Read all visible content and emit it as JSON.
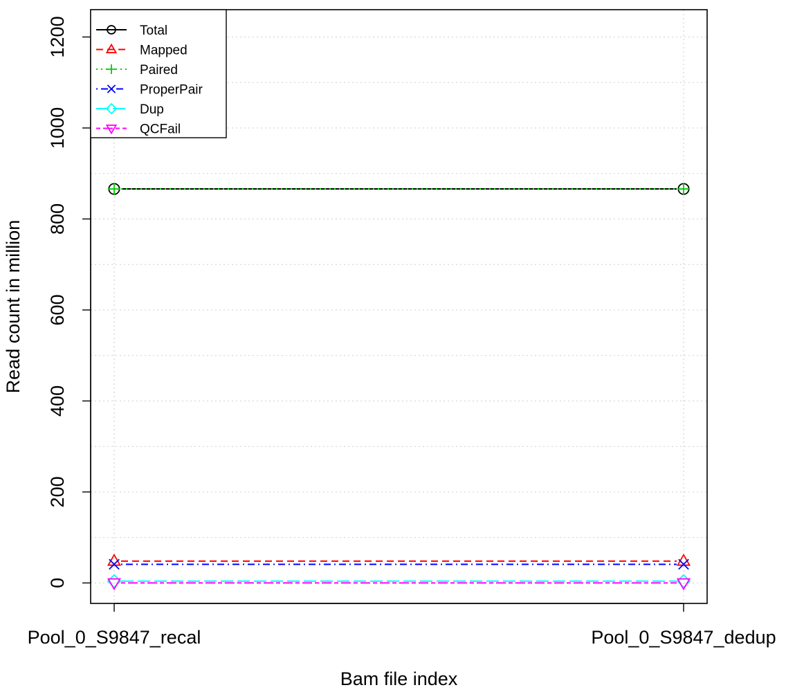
{
  "chart_data": {
    "type": "line",
    "title": "",
    "xlabel": "Bam file index",
    "ylabel": "Read count in million",
    "categories": [
      "Pool_0_S9847_recal",
      "Pool_0_S9847_dedup"
    ],
    "ylim": [
      -45,
      1260
    ],
    "yticks": [
      0,
      200,
      400,
      600,
      800,
      1000,
      1200
    ],
    "grid": true,
    "legend_position": "top-left",
    "series": [
      {
        "name": "Total",
        "values": [
          866,
          866
        ],
        "color": "#000000",
        "marker": "circle",
        "dash": "solid"
      },
      {
        "name": "Mapped",
        "values": [
          48,
          48
        ],
        "color": "#ff0000",
        "marker": "triangle-up",
        "dash": "dashed"
      },
      {
        "name": "Paired",
        "values": [
          866,
          866
        ],
        "color": "#00cd00",
        "marker": "plus",
        "dash": "dotted"
      },
      {
        "name": "ProperPair",
        "values": [
          41,
          41
        ],
        "color": "#0000ff",
        "marker": "cross",
        "dash": "dotdash"
      },
      {
        "name": "Dup",
        "values": [
          4,
          4
        ],
        "color": "#00ffff",
        "marker": "diamond",
        "dash": "longdash"
      },
      {
        "name": "QCFail",
        "values": [
          0,
          0
        ],
        "color": "#ff00ff",
        "marker": "triangle-down",
        "dash": "twodash"
      }
    ]
  }
}
